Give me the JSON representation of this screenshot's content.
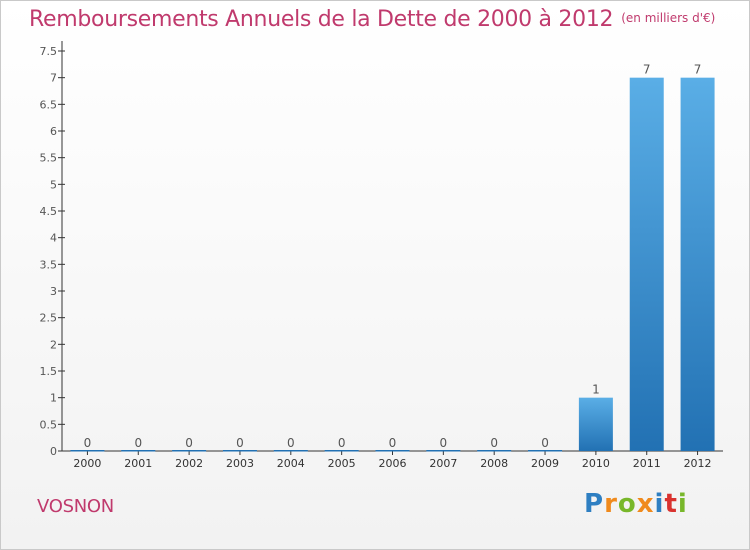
{
  "header": {
    "title": "Remboursements Annuels de la Dette de 2000 à 2012",
    "unit": "(en milliers d'€)"
  },
  "footer": {
    "commune": "VOSNON"
  },
  "logo": {
    "text": "Proxiti",
    "letters": [
      "P",
      "r",
      "o",
      "x",
      "i",
      "t",
      "i"
    ],
    "colors": [
      "#2e7fc2",
      "#f08a1c",
      "#78b72a",
      "#f08a1c",
      "#2e7fc2",
      "#d9322f",
      "#78b72a"
    ]
  },
  "chart_data": {
    "type": "bar",
    "categories": [
      "2000",
      "2001",
      "2002",
      "2003",
      "2004",
      "2005",
      "2006",
      "2007",
      "2008",
      "2009",
      "2010",
      "2011",
      "2012"
    ],
    "values": [
      0,
      0,
      0,
      0,
      0,
      0,
      0,
      0,
      0,
      0,
      1,
      7,
      7
    ],
    "value_labels": [
      "0",
      "0",
      "0",
      "0",
      "0",
      "0",
      "0",
      "0",
      "0",
      "0",
      "1",
      "7",
      "7"
    ],
    "ylim": [
      0,
      7.5
    ],
    "ytick_values": [
      0,
      0.5,
      1,
      1.5,
      2,
      2.5,
      3,
      3.5,
      4,
      4.5,
      5,
      5.5,
      6,
      6.5,
      7,
      7.5
    ],
    "ytick_labels": [
      "0",
      "0.5",
      "1",
      "1.5",
      "2",
      "2.5",
      "3",
      "3.5",
      "4",
      "4.5",
      "5",
      "5.5",
      "6",
      "6.5",
      "7",
      "7.5"
    ],
    "grid": false,
    "colors": {
      "bar_top": "#5aaee6",
      "bar_bottom": "#2271b3",
      "axis": "#333333",
      "text": "#555555"
    }
  }
}
